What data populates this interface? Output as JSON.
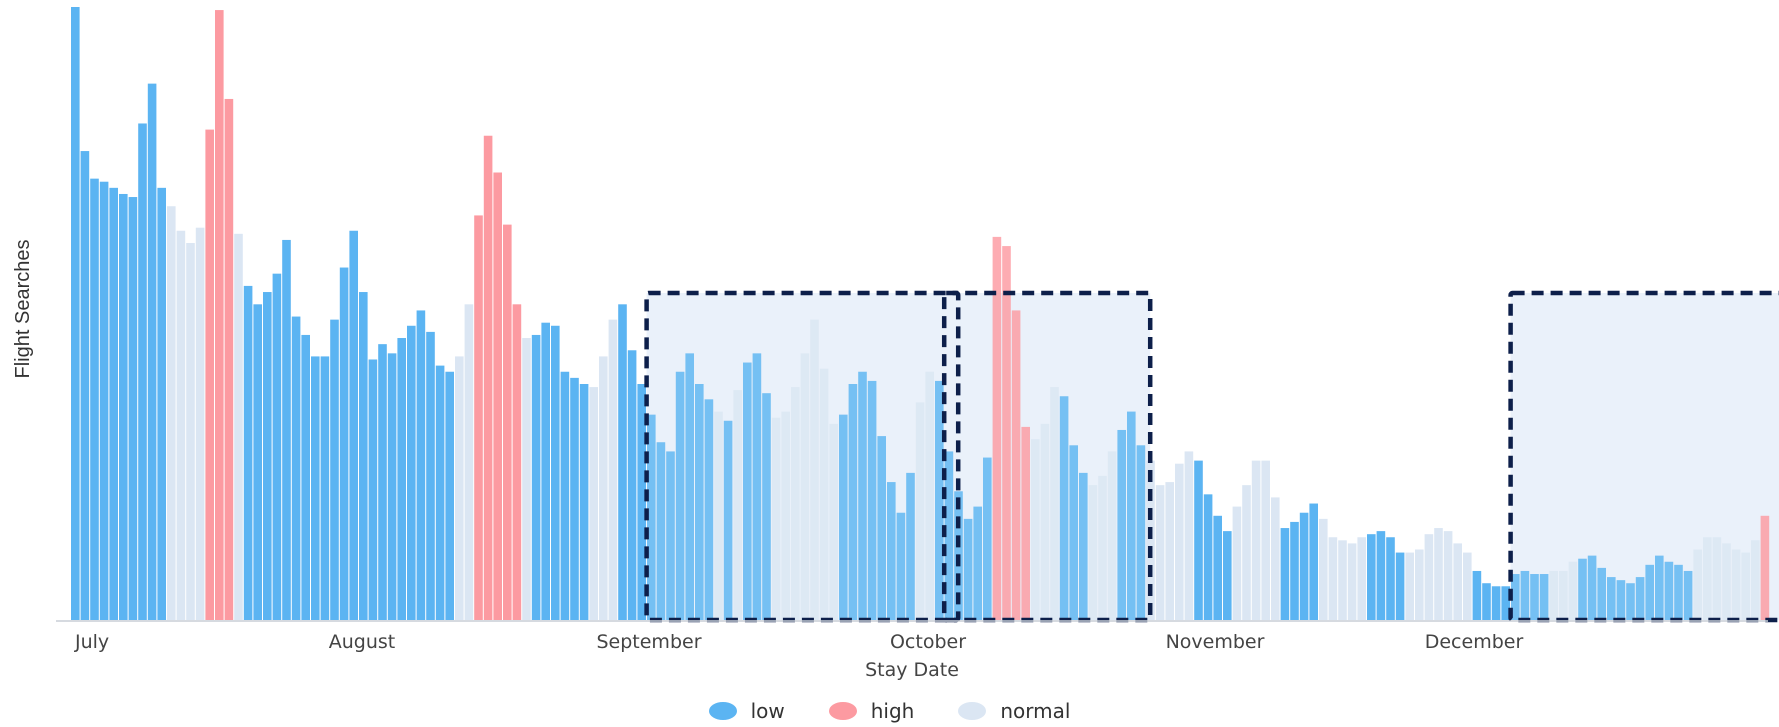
{
  "chart_data": {
    "type": "bar",
    "title": "",
    "xlabel": "Stay Date",
    "ylabel": "Flight Searches",
    "month_labels": [
      "July",
      "August",
      "September",
      "October",
      "November",
      "December"
    ],
    "ylim": [
      0,
      100
    ],
    "grid": false,
    "legend_position": "bottom-center",
    "legend": [
      {
        "key": "low",
        "label": "low",
        "color": "#5bb4f2"
      },
      {
        "key": "high",
        "label": "high",
        "color": "#fc9aa1"
      },
      {
        "key": "normal",
        "label": "normal",
        "color": "#dbe6f3"
      }
    ],
    "highlight_ranges": [
      {
        "from_day": 62,
        "to_day": 92
      },
      {
        "from_day": 93,
        "to_day": 112
      },
      {
        "from_day": 152,
        "to_day": 204
      }
    ],
    "series": [
      {
        "day": 1,
        "value": 100,
        "level": "low"
      },
      {
        "day": 2,
        "value": 76.5,
        "level": "low"
      },
      {
        "day": 3,
        "value": 72,
        "level": "low"
      },
      {
        "day": 4,
        "value": 71.5,
        "level": "low"
      },
      {
        "day": 5,
        "value": 70.5,
        "level": "low"
      },
      {
        "day": 6,
        "value": 69.5,
        "level": "low"
      },
      {
        "day": 7,
        "value": 69,
        "level": "low"
      },
      {
        "day": 8,
        "value": 81,
        "level": "low"
      },
      {
        "day": 9,
        "value": 87.5,
        "level": "low"
      },
      {
        "day": 10,
        "value": 70.5,
        "level": "low"
      },
      {
        "day": 11,
        "value": 67.5,
        "level": "normal"
      },
      {
        "day": 12,
        "value": 63.5,
        "level": "normal"
      },
      {
        "day": 13,
        "value": 61.5,
        "level": "normal"
      },
      {
        "day": 14,
        "value": 64,
        "level": "normal"
      },
      {
        "day": 15,
        "value": 80,
        "level": "high"
      },
      {
        "day": 16,
        "value": 99.5,
        "level": "high"
      },
      {
        "day": 17,
        "value": 85,
        "level": "high"
      },
      {
        "day": 18,
        "value": 63,
        "level": "normal"
      },
      {
        "day": 19,
        "value": 54.5,
        "level": "low"
      },
      {
        "day": 20,
        "value": 51.5,
        "level": "low"
      },
      {
        "day": 21,
        "value": 53.5,
        "level": "low"
      },
      {
        "day": 22,
        "value": 56.5,
        "level": "low"
      },
      {
        "day": 23,
        "value": 62,
        "level": "low"
      },
      {
        "day": 24,
        "value": 49.5,
        "level": "low"
      },
      {
        "day": 25,
        "value": 46.5,
        "level": "low"
      },
      {
        "day": 26,
        "value": 43,
        "level": "low"
      },
      {
        "day": 27,
        "value": 43,
        "level": "low"
      },
      {
        "day": 28,
        "value": 49,
        "level": "low"
      },
      {
        "day": 29,
        "value": 57.5,
        "level": "low"
      },
      {
        "day": 30,
        "value": 63.5,
        "level": "low"
      },
      {
        "day": 31,
        "value": 53.5,
        "level": "low"
      },
      {
        "day": 32,
        "value": 42.5,
        "level": "low"
      },
      {
        "day": 33,
        "value": 45,
        "level": "low"
      },
      {
        "day": 34,
        "value": 43.5,
        "level": "low"
      },
      {
        "day": 35,
        "value": 46,
        "level": "low"
      },
      {
        "day": 36,
        "value": 48,
        "level": "low"
      },
      {
        "day": 37,
        "value": 50.5,
        "level": "low"
      },
      {
        "day": 38,
        "value": 47,
        "level": "low"
      },
      {
        "day": 39,
        "value": 41.5,
        "level": "low"
      },
      {
        "day": 40,
        "value": 40.5,
        "level": "low"
      },
      {
        "day": 41,
        "value": 43,
        "level": "normal"
      },
      {
        "day": 42,
        "value": 51.5,
        "level": "normal"
      },
      {
        "day": 43,
        "value": 66,
        "level": "high"
      },
      {
        "day": 44,
        "value": 79,
        "level": "high"
      },
      {
        "day": 45,
        "value": 73,
        "level": "high"
      },
      {
        "day": 46,
        "value": 64.5,
        "level": "high"
      },
      {
        "day": 47,
        "value": 51.5,
        "level": "high"
      },
      {
        "day": 48,
        "value": 46,
        "level": "normal"
      },
      {
        "day": 49,
        "value": 46.5,
        "level": "low"
      },
      {
        "day": 50,
        "value": 48.5,
        "level": "low"
      },
      {
        "day": 51,
        "value": 48,
        "level": "low"
      },
      {
        "day": 52,
        "value": 40.5,
        "level": "low"
      },
      {
        "day": 53,
        "value": 39.5,
        "level": "low"
      },
      {
        "day": 54,
        "value": 38.5,
        "level": "low"
      },
      {
        "day": 55,
        "value": 38,
        "level": "normal"
      },
      {
        "day": 56,
        "value": 43,
        "level": "normal"
      },
      {
        "day": 57,
        "value": 49,
        "level": "normal"
      },
      {
        "day": 58,
        "value": 51.5,
        "level": "low"
      },
      {
        "day": 59,
        "value": 44,
        "level": "low"
      },
      {
        "day": 60,
        "value": 38.5,
        "level": "low"
      },
      {
        "day": 61,
        "value": 33.5,
        "level": "low"
      },
      {
        "day": 62,
        "value": 29,
        "level": "low"
      },
      {
        "day": 63,
        "value": 27.5,
        "level": "low"
      },
      {
        "day": 64,
        "value": 40.5,
        "level": "low"
      },
      {
        "day": 65,
        "value": 43.5,
        "level": "low"
      },
      {
        "day": 66,
        "value": 38.5,
        "level": "low"
      },
      {
        "day": 67,
        "value": 36,
        "level": "low"
      },
      {
        "day": 68,
        "value": 34,
        "level": "normal"
      },
      {
        "day": 69,
        "value": 32.5,
        "level": "low"
      },
      {
        "day": 70,
        "value": 37.5,
        "level": "normal"
      },
      {
        "day": 71,
        "value": 42,
        "level": "low"
      },
      {
        "day": 72,
        "value": 43.5,
        "level": "low"
      },
      {
        "day": 73,
        "value": 37,
        "level": "low"
      },
      {
        "day": 74,
        "value": 33,
        "level": "normal"
      },
      {
        "day": 75,
        "value": 34,
        "level": "normal"
      },
      {
        "day": 76,
        "value": 38,
        "level": "normal"
      },
      {
        "day": 77,
        "value": 43.5,
        "level": "normal"
      },
      {
        "day": 78,
        "value": 49,
        "level": "normal"
      },
      {
        "day": 79,
        "value": 41,
        "level": "normal"
      },
      {
        "day": 80,
        "value": 32,
        "level": "normal"
      },
      {
        "day": 81,
        "value": 33.5,
        "level": "low"
      },
      {
        "day": 82,
        "value": 38.5,
        "level": "low"
      },
      {
        "day": 83,
        "value": 40.5,
        "level": "low"
      },
      {
        "day": 84,
        "value": 39,
        "level": "low"
      },
      {
        "day": 85,
        "value": 30,
        "level": "low"
      },
      {
        "day": 86,
        "value": 22.5,
        "level": "low"
      },
      {
        "day": 87,
        "value": 17.5,
        "level": "low"
      },
      {
        "day": 88,
        "value": 24,
        "level": "low"
      },
      {
        "day": 89,
        "value": 35.5,
        "level": "normal"
      },
      {
        "day": 90,
        "value": 40.5,
        "level": "normal"
      },
      {
        "day": 91,
        "value": 39,
        "level": "low"
      },
      {
        "day": 92,
        "value": 27.5,
        "level": "low"
      },
      {
        "day": 93,
        "value": 21,
        "level": "low"
      },
      {
        "day": 94,
        "value": 16.5,
        "level": "low"
      },
      {
        "day": 95,
        "value": 18.5,
        "level": "low"
      },
      {
        "day": 96,
        "value": 26.5,
        "level": "low"
      },
      {
        "day": 97,
        "value": 62.5,
        "level": "high"
      },
      {
        "day": 98,
        "value": 61,
        "level": "high"
      },
      {
        "day": 99,
        "value": 50.5,
        "level": "high"
      },
      {
        "day": 100,
        "value": 31.5,
        "level": "high"
      },
      {
        "day": 101,
        "value": 29.5,
        "level": "normal"
      },
      {
        "day": 102,
        "value": 32,
        "level": "normal"
      },
      {
        "day": 103,
        "value": 38,
        "level": "normal"
      },
      {
        "day": 104,
        "value": 36.5,
        "level": "low"
      },
      {
        "day": 105,
        "value": 28.5,
        "level": "low"
      },
      {
        "day": 106,
        "value": 24,
        "level": "low"
      },
      {
        "day": 107,
        "value": 22,
        "level": "normal"
      },
      {
        "day": 108,
        "value": 23.5,
        "level": "normal"
      },
      {
        "day": 109,
        "value": 27.5,
        "level": "normal"
      },
      {
        "day": 110,
        "value": 31,
        "level": "low"
      },
      {
        "day": 111,
        "value": 34,
        "level": "low"
      },
      {
        "day": 112,
        "value": 28.5,
        "level": "low"
      },
      {
        "day": 113,
        "value": 26,
        "level": "normal"
      },
      {
        "day": 114,
        "value": 22,
        "level": "normal"
      },
      {
        "day": 115,
        "value": 22.5,
        "level": "normal"
      },
      {
        "day": 116,
        "value": 25.5,
        "level": "normal"
      },
      {
        "day": 117,
        "value": 27.5,
        "level": "normal"
      },
      {
        "day": 118,
        "value": 26,
        "level": "low"
      },
      {
        "day": 119,
        "value": 20.5,
        "level": "low"
      },
      {
        "day": 120,
        "value": 17,
        "level": "low"
      },
      {
        "day": 121,
        "value": 14.5,
        "level": "low"
      },
      {
        "day": 122,
        "value": 18.5,
        "level": "normal"
      },
      {
        "day": 123,
        "value": 22,
        "level": "normal"
      },
      {
        "day": 124,
        "value": 26,
        "level": "normal"
      },
      {
        "day": 125,
        "value": 26,
        "level": "normal"
      },
      {
        "day": 126,
        "value": 20,
        "level": "normal"
      },
      {
        "day": 127,
        "value": 15,
        "level": "low"
      },
      {
        "day": 128,
        "value": 16,
        "level": "low"
      },
      {
        "day": 129,
        "value": 17.5,
        "level": "low"
      },
      {
        "day": 130,
        "value": 19,
        "level": "low"
      },
      {
        "day": 131,
        "value": 16.5,
        "level": "normal"
      },
      {
        "day": 132,
        "value": 13.5,
        "level": "normal"
      },
      {
        "day": 133,
        "value": 13,
        "level": "normal"
      },
      {
        "day": 134,
        "value": 12.5,
        "level": "normal"
      },
      {
        "day": 135,
        "value": 13.5,
        "level": "normal"
      },
      {
        "day": 136,
        "value": 14,
        "level": "low"
      },
      {
        "day": 137,
        "value": 14.5,
        "level": "low"
      },
      {
        "day": 138,
        "value": 13.5,
        "level": "low"
      },
      {
        "day": 139,
        "value": 11,
        "level": "low"
      },
      {
        "day": 140,
        "value": 11,
        "level": "normal"
      },
      {
        "day": 141,
        "value": 11.5,
        "level": "normal"
      },
      {
        "day": 142,
        "value": 14,
        "level": "normal"
      },
      {
        "day": 143,
        "value": 15,
        "level": "normal"
      },
      {
        "day": 144,
        "value": 14.5,
        "level": "normal"
      },
      {
        "day": 145,
        "value": 12.5,
        "level": "normal"
      },
      {
        "day": 146,
        "value": 11,
        "level": "normal"
      },
      {
        "day": 147,
        "value": 8,
        "level": "low"
      },
      {
        "day": 148,
        "value": 6,
        "level": "low"
      },
      {
        "day": 149,
        "value": 5.5,
        "level": "low"
      },
      {
        "day": 150,
        "value": 5.5,
        "level": "low"
      },
      {
        "day": 151,
        "value": 7.5,
        "level": "low"
      },
      {
        "day": 152,
        "value": 8,
        "level": "low"
      },
      {
        "day": 153,
        "value": 7.5,
        "level": "low"
      },
      {
        "day": 154,
        "value": 7.5,
        "level": "low"
      },
      {
        "day": 155,
        "value": 8,
        "level": "normal"
      },
      {
        "day": 156,
        "value": 8,
        "level": "normal"
      },
      {
        "day": 157,
        "value": 9.5,
        "level": "normal"
      },
      {
        "day": 158,
        "value": 10,
        "level": "low"
      },
      {
        "day": 159,
        "value": 10.5,
        "level": "low"
      },
      {
        "day": 160,
        "value": 8.5,
        "level": "low"
      },
      {
        "day": 161,
        "value": 7,
        "level": "low"
      },
      {
        "day": 162,
        "value": 6.5,
        "level": "low"
      },
      {
        "day": 163,
        "value": 6,
        "level": "low"
      },
      {
        "day": 164,
        "value": 7,
        "level": "low"
      },
      {
        "day": 165,
        "value": 9,
        "level": "low"
      },
      {
        "day": 166,
        "value": 10.5,
        "level": "low"
      },
      {
        "day": 167,
        "value": 9.5,
        "level": "low"
      },
      {
        "day": 168,
        "value": 9,
        "level": "low"
      },
      {
        "day": 169,
        "value": 8,
        "level": "low"
      },
      {
        "day": 170,
        "value": 11.5,
        "level": "normal"
      },
      {
        "day": 171,
        "value": 13.5,
        "level": "normal"
      },
      {
        "day": 172,
        "value": 13.5,
        "level": "normal"
      },
      {
        "day": 173,
        "value": 12.5,
        "level": "normal"
      },
      {
        "day": 174,
        "value": 11.5,
        "level": "normal"
      },
      {
        "day": 175,
        "value": 11,
        "level": "normal"
      },
      {
        "day": 176,
        "value": 13,
        "level": "normal"
      },
      {
        "day": 177,
        "value": 17,
        "level": "high"
      }
    ]
  }
}
